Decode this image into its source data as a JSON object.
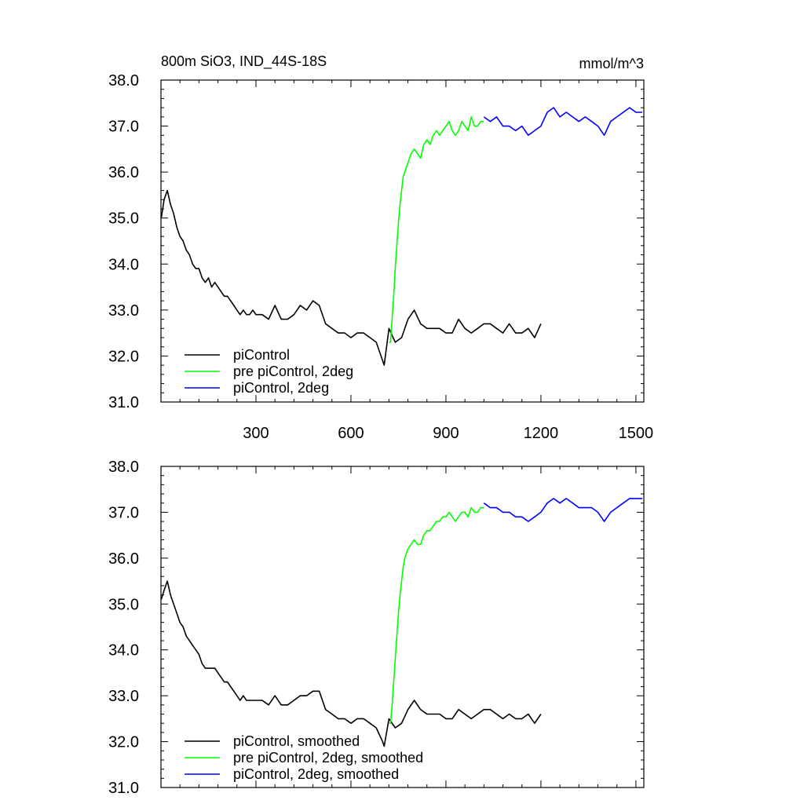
{
  "chart_data": [
    {
      "type": "line",
      "title": "800m SiO3, IND_44S-18S",
      "units": "mmol/m^3",
      "xlabel": "",
      "ylabel": "",
      "xlim": [
        0,
        1525
      ],
      "ylim": [
        31.0,
        38.0
      ],
      "x_ticks": [
        300,
        600,
        900,
        1200,
        1500
      ],
      "x_tick_labels": [
        "300",
        "600",
        "900",
        "1200",
        "1500"
      ],
      "y_ticks": [
        31,
        32,
        33,
        34,
        35,
        36,
        37,
        38
      ],
      "y_tick_labels": [
        "31.0",
        "32.0",
        "33.0",
        "34.0",
        "35.0",
        "36.0",
        "37.0",
        "38.0"
      ],
      "legend_position": "bottom-left",
      "series": [
        {
          "name": "piControl",
          "color": "#000000",
          "x": [
            1,
            10,
            20,
            30,
            40,
            50,
            60,
            70,
            80,
            90,
            100,
            110,
            120,
            130,
            140,
            150,
            160,
            170,
            180,
            190,
            200,
            210,
            220,
            230,
            240,
            250,
            260,
            270,
            280,
            290,
            300,
            320,
            340,
            360,
            380,
            400,
            420,
            440,
            460,
            480,
            500,
            520,
            540,
            560,
            580,
            600,
            620,
            640,
            660,
            680,
            700,
            705,
            720,
            740,
            760,
            780,
            800,
            820,
            840,
            860,
            880,
            900,
            920,
            940,
            960,
            980,
            1000,
            1020,
            1040,
            1060,
            1080,
            1100,
            1120,
            1140,
            1160,
            1180,
            1200
          ],
          "values": [
            35.0,
            35.4,
            35.6,
            35.3,
            35.1,
            34.8,
            34.6,
            34.5,
            34.3,
            34.2,
            34.0,
            33.9,
            33.9,
            33.7,
            33.6,
            33.7,
            33.5,
            33.6,
            33.5,
            33.4,
            33.3,
            33.3,
            33.2,
            33.1,
            33.0,
            32.9,
            33.0,
            32.9,
            32.9,
            33.0,
            32.9,
            32.9,
            32.8,
            33.1,
            32.8,
            32.8,
            32.9,
            33.1,
            33.0,
            33.2,
            33.1,
            32.7,
            32.6,
            32.5,
            32.5,
            32.4,
            32.5,
            32.5,
            32.4,
            32.3,
            31.9,
            31.8,
            32.6,
            32.3,
            32.4,
            32.8,
            33.0,
            32.7,
            32.6,
            32.6,
            32.6,
            32.5,
            32.5,
            32.8,
            32.6,
            32.5,
            32.6,
            32.7,
            32.7,
            32.6,
            32.5,
            32.7,
            32.5,
            32.5,
            32.6,
            32.4,
            32.7
          ]
        },
        {
          "name": "pre piControl, 2deg",
          "color": "#00ff00",
          "x": [
            720,
            725,
            730,
            735,
            740,
            745,
            750,
            755,
            760,
            765,
            770,
            780,
            790,
            800,
            810,
            820,
            830,
            840,
            850,
            860,
            870,
            880,
            890,
            900,
            910,
            920,
            930,
            940,
            950,
            960,
            970,
            980,
            990,
            1000,
            1010,
            1020
          ],
          "values": [
            32.3,
            32.3,
            32.8,
            33.3,
            33.9,
            34.4,
            34.9,
            35.3,
            35.6,
            35.9,
            36.0,
            36.2,
            36.4,
            36.5,
            36.4,
            36.3,
            36.6,
            36.7,
            36.6,
            36.8,
            36.9,
            36.8,
            36.9,
            37.0,
            37.1,
            36.9,
            36.8,
            36.9,
            37.1,
            37.0,
            36.9,
            37.2,
            37.0,
            37.0,
            37.1,
            37.1
          ]
        },
        {
          "name": "piControl, 2deg",
          "color": "#0000ff",
          "x": [
            1020,
            1040,
            1060,
            1080,
            1100,
            1120,
            1140,
            1160,
            1180,
            1200,
            1220,
            1240,
            1260,
            1280,
            1300,
            1320,
            1340,
            1360,
            1380,
            1400,
            1420,
            1440,
            1460,
            1480,
            1500,
            1520
          ],
          "values": [
            37.2,
            37.1,
            37.2,
            37.0,
            37.0,
            36.9,
            37.0,
            36.8,
            36.9,
            37.0,
            37.3,
            37.4,
            37.2,
            37.3,
            37.2,
            37.1,
            37.2,
            37.1,
            37.0,
            36.8,
            37.1,
            37.2,
            37.3,
            37.4,
            37.3,
            37.3
          ]
        }
      ]
    },
    {
      "type": "line",
      "title": "",
      "xlabel": "",
      "ylabel": "",
      "xlim": [
        0,
        1525
      ],
      "ylim": [
        31.0,
        38.0
      ],
      "x_ticks": [
        300,
        600,
        900,
        1200,
        1500
      ],
      "y_ticks": [
        31,
        32,
        33,
        34,
        35,
        36,
        37,
        38
      ],
      "y_tick_labels": [
        "31.0",
        "32.0",
        "33.0",
        "34.0",
        "35.0",
        "36.0",
        "37.0",
        "38.0"
      ],
      "legend_position": "bottom-left",
      "series": [
        {
          "name": "piControl, smoothed",
          "color": "#000000",
          "x": [
            1,
            10,
            20,
            30,
            40,
            50,
            60,
            70,
            80,
            90,
            100,
            110,
            120,
            130,
            140,
            150,
            160,
            170,
            180,
            190,
            200,
            210,
            220,
            230,
            240,
            250,
            260,
            270,
            280,
            290,
            300,
            320,
            340,
            360,
            380,
            400,
            420,
            440,
            460,
            480,
            500,
            520,
            540,
            560,
            580,
            600,
            620,
            640,
            660,
            680,
            700,
            705,
            720,
            740,
            760,
            780,
            800,
            820,
            840,
            860,
            880,
            900,
            920,
            940,
            960,
            980,
            1000,
            1020,
            1040,
            1060,
            1080,
            1100,
            1120,
            1140,
            1160,
            1180,
            1200
          ],
          "values": [
            35.1,
            35.3,
            35.5,
            35.2,
            35.0,
            34.8,
            34.6,
            34.5,
            34.3,
            34.2,
            34.1,
            34.0,
            33.9,
            33.7,
            33.6,
            33.6,
            33.6,
            33.6,
            33.5,
            33.4,
            33.3,
            33.3,
            33.2,
            33.1,
            33.0,
            32.9,
            33.0,
            32.9,
            32.9,
            32.9,
            32.9,
            32.9,
            32.8,
            33.0,
            32.8,
            32.8,
            32.9,
            33.0,
            33.0,
            33.1,
            33.1,
            32.7,
            32.6,
            32.5,
            32.5,
            32.4,
            32.5,
            32.5,
            32.4,
            32.3,
            32.0,
            31.9,
            32.5,
            32.3,
            32.4,
            32.7,
            32.9,
            32.7,
            32.6,
            32.6,
            32.6,
            32.5,
            32.5,
            32.7,
            32.6,
            32.5,
            32.6,
            32.7,
            32.7,
            32.6,
            32.5,
            32.6,
            32.5,
            32.5,
            32.6,
            32.4,
            32.6
          ]
        },
        {
          "name": "pre piControl, 2deg, smoothed",
          "color": "#00ff00",
          "x": [
            720,
            725,
            730,
            735,
            740,
            745,
            750,
            755,
            760,
            765,
            770,
            780,
            790,
            800,
            810,
            820,
            830,
            840,
            850,
            860,
            870,
            880,
            890,
            900,
            910,
            920,
            930,
            940,
            950,
            960,
            970,
            980,
            990,
            1000,
            1010,
            1020
          ],
          "values": [
            32.4,
            32.4,
            32.8,
            33.3,
            33.8,
            34.3,
            34.8,
            35.2,
            35.5,
            35.8,
            36.0,
            36.2,
            36.3,
            36.4,
            36.3,
            36.3,
            36.5,
            36.6,
            36.6,
            36.7,
            36.8,
            36.8,
            36.9,
            36.9,
            37.0,
            36.9,
            36.8,
            36.9,
            37.0,
            37.0,
            36.9,
            37.1,
            37.0,
            37.0,
            37.1,
            37.1
          ]
        },
        {
          "name": "piControl, 2deg, smoothed",
          "color": "#0000ff",
          "x": [
            1020,
            1040,
            1060,
            1080,
            1100,
            1120,
            1140,
            1160,
            1180,
            1200,
            1220,
            1240,
            1260,
            1280,
            1300,
            1320,
            1340,
            1360,
            1380,
            1400,
            1420,
            1440,
            1460,
            1480,
            1500,
            1520
          ],
          "values": [
            37.2,
            37.1,
            37.1,
            37.0,
            37.0,
            36.9,
            36.9,
            36.8,
            36.9,
            37.0,
            37.2,
            37.3,
            37.2,
            37.3,
            37.2,
            37.1,
            37.1,
            37.1,
            37.0,
            36.8,
            37.0,
            37.1,
            37.2,
            37.3,
            37.3,
            37.3
          ]
        }
      ]
    }
  ]
}
